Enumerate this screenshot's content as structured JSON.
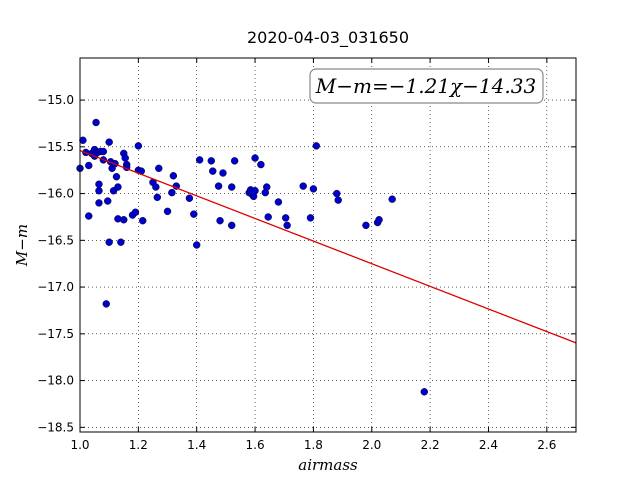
{
  "chart_data": {
    "type": "scatter",
    "title": "2020-04-03_031650",
    "xlabel": "airmass",
    "ylabel": "M−m",
    "xlim": [
      1.0,
      2.7
    ],
    "ylim": [
      -18.55,
      -14.55
    ],
    "x_ticks": [
      "1.0",
      "1.2",
      "1.4",
      "1.6",
      "1.8",
      "2.0",
      "2.2",
      "2.4",
      "2.6"
    ],
    "x_tick_values": [
      1.0,
      1.2,
      1.4,
      1.6,
      1.8,
      2.0,
      2.2,
      2.4,
      2.6
    ],
    "y_ticks": [
      "−15.0",
      "−15.5",
      "−16.0",
      "−16.5",
      "−17.0",
      "−17.5",
      "−18.0",
      "−18.5"
    ],
    "y_tick_values": [
      -15.0,
      -15.5,
      -16.0,
      -16.5,
      -17.0,
      -17.5,
      -18.0,
      -18.5
    ],
    "grid": true,
    "annotation": "M−m=−1.21χ−14.33",
    "fit": {
      "slope": -1.21,
      "intercept": -14.33,
      "color": "#dd0000"
    },
    "point_color": "#0000cc",
    "points": [
      [
        1.0,
        -15.73
      ],
      [
        1.01,
        -15.43
      ],
      [
        1.02,
        -15.56
      ],
      [
        1.03,
        -15.7
      ],
      [
        1.03,
        -16.24
      ],
      [
        1.04,
        -15.57
      ],
      [
        1.05,
        -15.6
      ],
      [
        1.05,
        -15.53
      ],
      [
        1.055,
        -15.24
      ],
      [
        1.06,
        -15.56
      ],
      [
        1.065,
        -15.9
      ],
      [
        1.065,
        -15.97
      ],
      [
        1.065,
        -16.1
      ],
      [
        1.07,
        -15.55
      ],
      [
        1.08,
        -15.55
      ],
      [
        1.08,
        -15.64
      ],
      [
        1.09,
        -17.18
      ],
      [
        1.095,
        -16.08
      ],
      [
        1.1,
        -15.45
      ],
      [
        1.1,
        -16.52
      ],
      [
        1.105,
        -15.66
      ],
      [
        1.11,
        -15.73
      ],
      [
        1.115,
        -15.97
      ],
      [
        1.12,
        -15.68
      ],
      [
        1.125,
        -15.82
      ],
      [
        1.13,
        -15.93
      ],
      [
        1.13,
        -16.27
      ],
      [
        1.14,
        -16.52
      ],
      [
        1.15,
        -15.57
      ],
      [
        1.15,
        -16.28
      ],
      [
        1.155,
        -15.62
      ],
      [
        1.16,
        -15.69
      ],
      [
        1.16,
        -15.72
      ],
      [
        1.18,
        -16.23
      ],
      [
        1.19,
        -16.2
      ],
      [
        1.2,
        -15.49
      ],
      [
        1.2,
        -15.75
      ],
      [
        1.21,
        -15.76
      ],
      [
        1.215,
        -16.29
      ],
      [
        1.25,
        -15.88
      ],
      [
        1.26,
        -15.93
      ],
      [
        1.265,
        -16.04
      ],
      [
        1.27,
        -15.73
      ],
      [
        1.3,
        -16.19
      ],
      [
        1.315,
        -15.99
      ],
      [
        1.32,
        -15.81
      ],
      [
        1.33,
        -15.92
      ],
      [
        1.375,
        -16.05
      ],
      [
        1.39,
        -16.22
      ],
      [
        1.4,
        -16.55
      ],
      [
        1.41,
        -15.64
      ],
      [
        1.45,
        -15.65
      ],
      [
        1.455,
        -15.76
      ],
      [
        1.475,
        -15.92
      ],
      [
        1.48,
        -16.29
      ],
      [
        1.49,
        -15.78
      ],
      [
        1.52,
        -15.93
      ],
      [
        1.52,
        -16.34
      ],
      [
        1.53,
        -15.65
      ],
      [
        1.58,
        -15.99
      ],
      [
        1.585,
        -15.96
      ],
      [
        1.59,
        -16.01
      ],
      [
        1.595,
        -16.03
      ],
      [
        1.6,
        -15.97
      ],
      [
        1.6,
        -15.62
      ],
      [
        1.62,
        -15.69
      ],
      [
        1.635,
        -15.99
      ],
      [
        1.64,
        -15.93
      ],
      [
        1.645,
        -16.25
      ],
      [
        1.68,
        -16.09
      ],
      [
        1.705,
        -16.26
      ],
      [
        1.71,
        -16.34
      ],
      [
        1.765,
        -15.92
      ],
      [
        1.79,
        -16.26
      ],
      [
        1.8,
        -15.95
      ],
      [
        1.81,
        -15.49
      ],
      [
        1.88,
        -16.0
      ],
      [
        1.885,
        -16.07
      ],
      [
        1.98,
        -16.34
      ],
      [
        2.02,
        -16.31
      ],
      [
        2.025,
        -16.28
      ],
      [
        2.07,
        -16.06
      ],
      [
        2.18,
        -18.12
      ]
    ]
  }
}
